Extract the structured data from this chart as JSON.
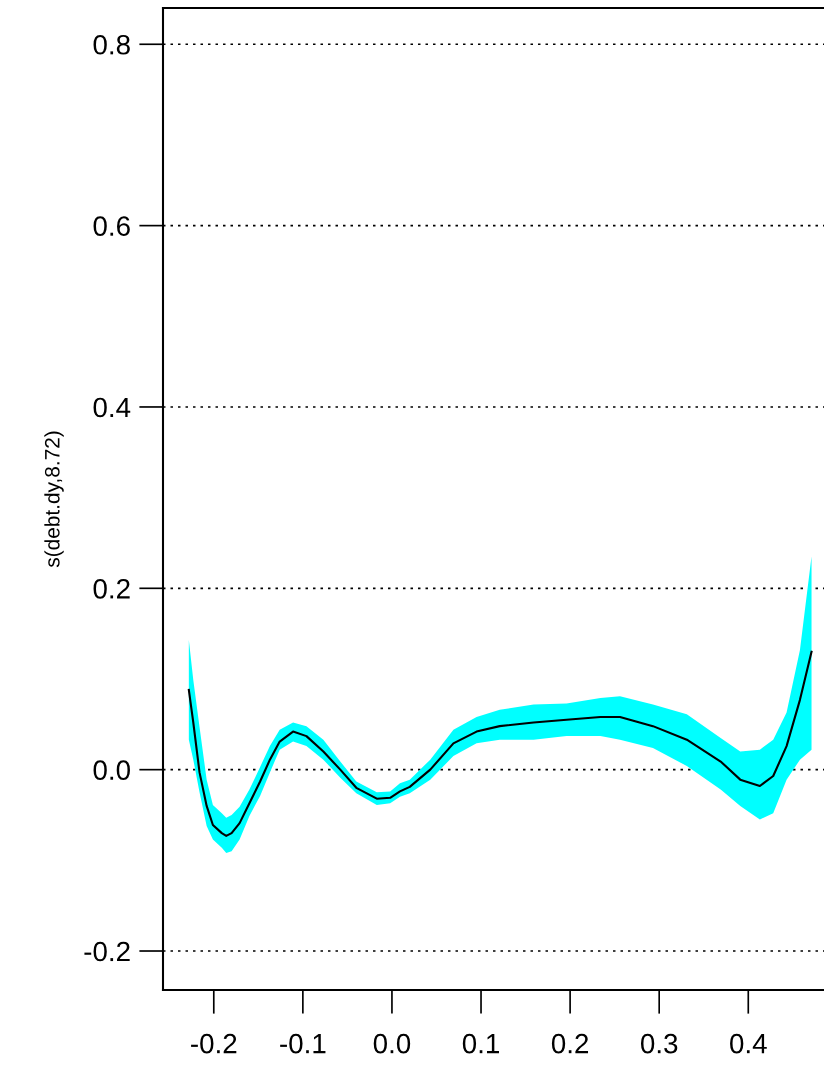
{
  "chart_data": {
    "type": "line",
    "ylabel": "s(debt.dy,8.72)",
    "x": [
      -0.228,
      -0.223,
      -0.216,
      -0.208,
      -0.201,
      -0.191,
      -0.186,
      -0.18,
      -0.171,
      -0.16,
      -0.148,
      -0.137,
      -0.126,
      -0.111,
      -0.096,
      -0.077,
      -0.058,
      -0.04,
      -0.017,
      -0.002,
      0.009,
      0.02,
      0.043,
      0.069,
      0.095,
      0.121,
      0.159,
      0.196,
      0.234,
      0.256,
      0.293,
      0.331,
      0.369,
      0.391,
      0.413,
      0.428,
      0.443,
      0.458,
      0.471
    ],
    "series": [
      {
        "color": "#000000",
        "values": [
          0.088,
          0.052,
          -0.003,
          -0.04,
          -0.061,
          -0.07,
          -0.073,
          -0.07,
          -0.059,
          -0.037,
          -0.013,
          0.011,
          0.031,
          0.042,
          0.037,
          0.02,
          0.0,
          -0.02,
          -0.032,
          -0.031,
          -0.024,
          -0.019,
          0.0,
          0.029,
          0.042,
          0.048,
          0.052,
          0.055,
          0.058,
          0.058,
          0.048,
          0.033,
          0.009,
          -0.011,
          -0.018,
          -0.007,
          0.026,
          0.077,
          0.13
        ],
        "upper": [
          0.143,
          0.099,
          0.047,
          -0.011,
          -0.039,
          -0.048,
          -0.053,
          -0.05,
          -0.041,
          -0.022,
          0.003,
          0.026,
          0.044,
          0.052,
          0.048,
          0.033,
          0.009,
          -0.013,
          -0.025,
          -0.024,
          -0.015,
          -0.011,
          0.011,
          0.044,
          0.058,
          0.066,
          0.072,
          0.073,
          0.079,
          0.081,
          0.072,
          0.061,
          0.035,
          0.02,
          0.022,
          0.033,
          0.063,
          0.132,
          0.235
        ],
        "lower": [
          0.033,
          0.011,
          -0.025,
          -0.062,
          -0.077,
          -0.086,
          -0.092,
          -0.09,
          -0.077,
          -0.051,
          -0.029,
          -0.003,
          0.022,
          0.031,
          0.026,
          0.011,
          -0.009,
          -0.026,
          -0.039,
          -0.037,
          -0.03,
          -0.026,
          -0.011,
          0.015,
          0.029,
          0.033,
          0.033,
          0.037,
          0.037,
          0.033,
          0.024,
          0.004,
          -0.022,
          -0.04,
          -0.055,
          -0.048,
          -0.011,
          0.011,
          0.022
        ]
      }
    ],
    "xlim": [
      -0.257,
      0.485
    ],
    "ylim": [
      -0.243,
      0.84
    ],
    "xticks": [
      {
        "value": -0.2,
        "label": "-0.2"
      },
      {
        "value": -0.1,
        "label": "-0.1"
      },
      {
        "value": 0.0,
        "label": "0.0"
      },
      {
        "value": 0.1,
        "label": "0.1"
      },
      {
        "value": 0.2,
        "label": "0.2"
      },
      {
        "value": 0.3,
        "label": "0.3"
      },
      {
        "value": 0.4,
        "label": "0.4"
      }
    ],
    "yticks": [
      {
        "value": -0.2,
        "label": "-0.2"
      },
      {
        "value": 0.0,
        "label": "0.0"
      },
      {
        "value": 0.2,
        "label": "0.2"
      },
      {
        "value": 0.4,
        "label": "0.4"
      },
      {
        "value": 0.6,
        "label": "0.6"
      },
      {
        "value": 0.8,
        "label": "0.8"
      }
    ],
    "grid": "y"
  }
}
